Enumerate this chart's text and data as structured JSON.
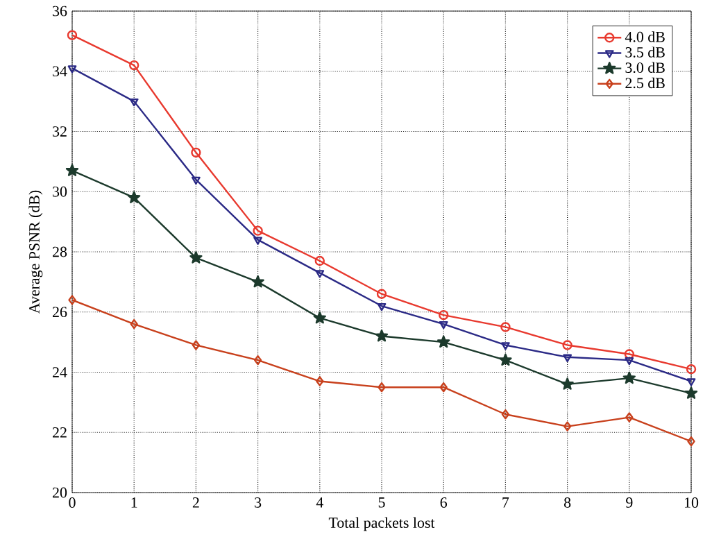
{
  "chart_data": {
    "type": "line",
    "xlabel": "Total packets lost",
    "ylabel": "Average PSNR (dB)",
    "x": [
      0,
      1,
      2,
      3,
      4,
      5,
      6,
      7,
      8,
      9,
      10
    ],
    "xlim": [
      0,
      10
    ],
    "xticks": [
      0,
      1,
      2,
      3,
      4,
      5,
      6,
      7,
      8,
      9,
      10
    ],
    "ylim": [
      20,
      36
    ],
    "yticks": [
      20,
      22,
      24,
      26,
      28,
      30,
      32,
      34,
      36
    ],
    "grid": true,
    "legend": "top right",
    "line_style": "solid",
    "series": [
      {
        "name": "4.0 dB",
        "color": "#e8392e",
        "marker": "circle",
        "values": [
          35.2,
          34.2,
          31.3,
          28.7,
          27.7,
          26.6,
          25.9,
          25.5,
          24.9,
          24.6,
          24.1
        ]
      },
      {
        "name": "3.5 dB",
        "color": "#2b2a86",
        "marker": "triangle",
        "values": [
          34.1,
          33.0,
          30.4,
          28.4,
          27.3,
          26.2,
          25.6,
          24.9,
          24.5,
          24.4,
          23.7
        ]
      },
      {
        "name": "3.0 dB",
        "color": "#1c3a2c",
        "marker": "star",
        "values": [
          30.7,
          29.8,
          27.8,
          27.0,
          25.8,
          25.2,
          25.0,
          24.4,
          23.6,
          23.8,
          23.3
        ]
      },
      {
        "name": "2.5 dB",
        "color": "#c8401c",
        "marker": "diamond",
        "values": [
          26.4,
          25.6,
          24.9,
          24.4,
          23.7,
          23.5,
          23.5,
          22.6,
          22.2,
          22.5,
          21.7
        ]
      }
    ]
  }
}
